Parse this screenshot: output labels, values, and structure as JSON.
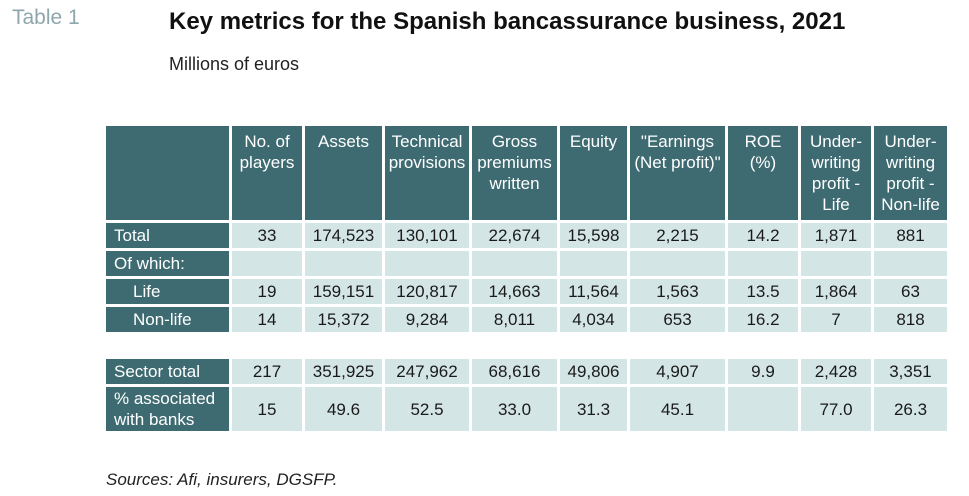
{
  "table_label": "Table 1",
  "title": "Key metrics for the Spanish bancassurance business, 2021",
  "subtitle": "Millions of euros",
  "columns": [
    "No. of\nplayers",
    "Assets",
    "Technical\nprovisions",
    "Gross\npremiums\nwritten",
    "Equity",
    "\"Earnings\n(Net profit)\"",
    "ROE\n(%)",
    "Under-\nwriting\nprofit -\nLife",
    "Under-\nwriting\nprofit -\nNon-life"
  ],
  "rows": [
    {
      "label": "Total",
      "values": [
        "33",
        "174,523",
        "130,101",
        "22,674",
        "15,598",
        "2,215",
        "14.2",
        "1,871",
        "881"
      ]
    },
    {
      "label": "Of which:",
      "values": [
        "",
        "",
        "",
        "",
        "",
        "",
        "",
        "",
        ""
      ]
    },
    {
      "label": "Life",
      "values": [
        "19",
        "159,151",
        "120,817",
        "14,663",
        "11,564",
        "1,563",
        "13.5",
        "1,864",
        "63"
      ]
    },
    {
      "label": "Non-life",
      "values": [
        "14",
        "15,372",
        "9,284",
        "8,011",
        "4,034",
        "653",
        "16.2",
        "7",
        "818"
      ]
    },
    {
      "label": "Sector total",
      "values": [
        "217",
        "351,925",
        "247,962",
        "68,616",
        "49,806",
        "4,907",
        "9.9",
        "2,428",
        "3,351"
      ]
    },
    {
      "label": "% associated\nwith banks",
      "values": [
        "15",
        "49.6",
        "52.5",
        "33.0",
        "31.3",
        "45.1",
        "",
        "77.0",
        "26.3"
      ]
    }
  ],
  "sources": "Sources: Afi, insurers, DGSFP."
}
